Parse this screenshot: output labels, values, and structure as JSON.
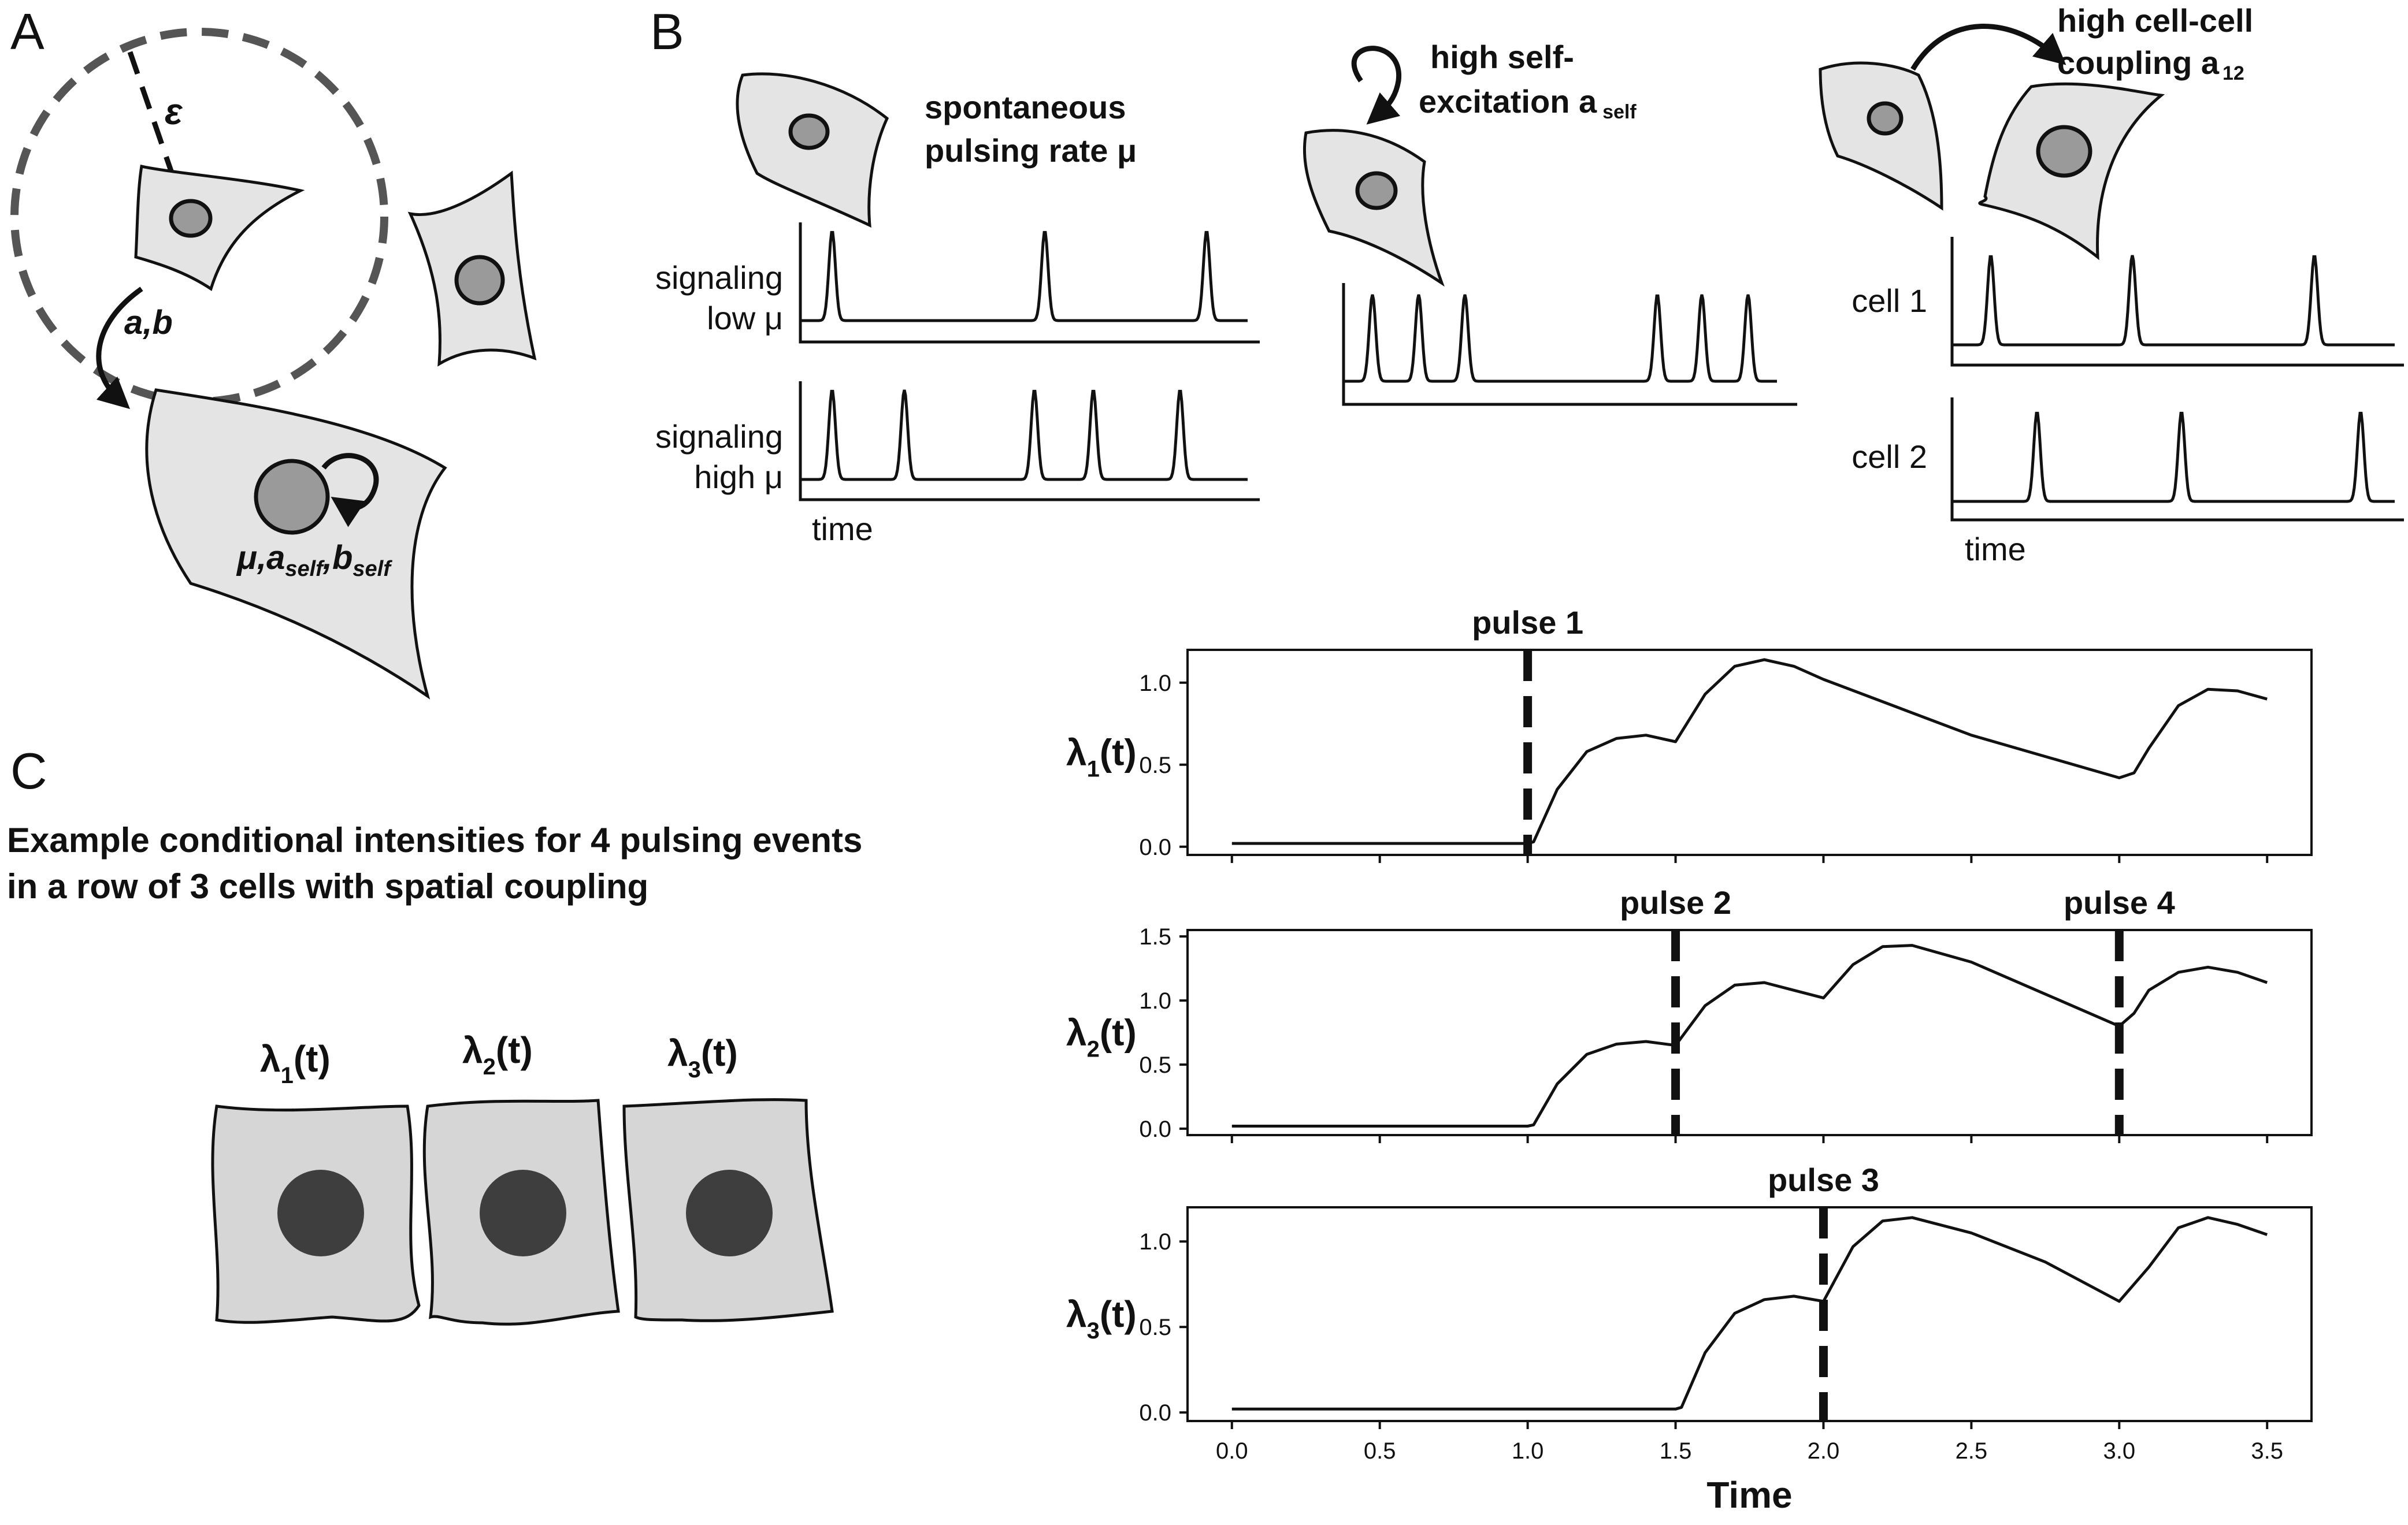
{
  "panels": {
    "a": "A",
    "b": "B",
    "c": "C"
  },
  "panel_a": {
    "epsilon": "ε",
    "ab": "a,b",
    "params_mu": "μ,a",
    "params_aself_sub": "self",
    "params_b": ",b",
    "params_bself_sub": "self"
  },
  "panel_b": {
    "rate_title_1": "spontaneous",
    "rate_title_2": "pulsing rate μ",
    "low_1": "signaling",
    "low_2": "low μ",
    "high_1": "signaling",
    "high_2": "high μ",
    "time_left": "time",
    "self_title_1": "high self-",
    "self_title_2": "excitation a",
    "self_sub": "self",
    "cc_title_1": "high cell-cell",
    "cc_title_2": "coupling a",
    "cc_sub": "12",
    "cell1": "cell 1",
    "cell2": "cell 2",
    "time_right": "time"
  },
  "panel_c": {
    "title_1": "Example conditional intensities for 4 pulsing events",
    "title_2": "in a row of 3 cells with spatial coupling",
    "cells": [
      {
        "main": "λ",
        "sub": "1",
        "tail": "(t)"
      },
      {
        "main": "λ",
        "sub": "2",
        "tail": "(t)"
      },
      {
        "main": "λ",
        "sub": "3",
        "tail": "(t)"
      }
    ]
  },
  "colors": {
    "cell_fill": "#e4e4e4",
    "cell_row_fill": "#d6d6d6",
    "nucleus": "#9a9a9a",
    "nucleus_dark": "#3e3e3e",
    "ink": "#111111"
  },
  "chart_data": [
    {
      "type": "line",
      "ylabel": "λ1(t)",
      "ylabel_main": "λ",
      "ylabel_sub": "1",
      "ylabel_tail": "(t)",
      "xlim": [
        -0.15,
        3.65
      ],
      "ylim": [
        -0.05,
        1.2
      ],
      "yticks": [
        "0.0",
        "0.5",
        "1.0"
      ],
      "pulses": [
        {
          "label": "pulse 1",
          "x": 1.0
        }
      ],
      "x": [
        0,
        0.5,
        1.0,
        1.02,
        1.1,
        1.2,
        1.3,
        1.4,
        1.5,
        1.6,
        1.7,
        1.8,
        1.9,
        2.0,
        2.25,
        2.5,
        2.75,
        3.0,
        3.05,
        3.1,
        3.2,
        3.3,
        3.4,
        3.5
      ],
      "y": [
        0.02,
        0.02,
        0.02,
        0.03,
        0.35,
        0.58,
        0.66,
        0.68,
        0.64,
        0.93,
        1.1,
        1.14,
        1.1,
        1.02,
        0.85,
        0.68,
        0.55,
        0.42,
        0.45,
        0.6,
        0.86,
        0.96,
        0.95,
        0.9
      ]
    },
    {
      "type": "line",
      "ylabel": "λ2(t)",
      "ylabel_main": "λ",
      "ylabel_sub": "2",
      "ylabel_tail": "(t)",
      "xlim": [
        -0.15,
        3.65
      ],
      "ylim": [
        -0.05,
        1.55
      ],
      "yticks": [
        "0.0",
        "0.5",
        "1.0",
        "1.5"
      ],
      "pulses": [
        {
          "label": "pulse 2",
          "x": 1.5
        },
        {
          "label": "pulse 4",
          "x": 3.0
        }
      ],
      "x": [
        0,
        0.5,
        1.0,
        1.02,
        1.1,
        1.2,
        1.3,
        1.4,
        1.5,
        1.6,
        1.7,
        1.8,
        1.9,
        2.0,
        2.1,
        2.2,
        2.3,
        2.5,
        2.75,
        3.0,
        3.05,
        3.1,
        3.2,
        3.3,
        3.4,
        3.5
      ],
      "y": [
        0.02,
        0.02,
        0.02,
        0.03,
        0.35,
        0.58,
        0.66,
        0.68,
        0.65,
        0.96,
        1.12,
        1.14,
        1.08,
        1.02,
        1.28,
        1.42,
        1.43,
        1.3,
        1.05,
        0.8,
        0.9,
        1.08,
        1.22,
        1.26,
        1.22,
        1.14
      ]
    },
    {
      "type": "line",
      "xlabel": "Time",
      "ylabel": "λ3(t)",
      "ylabel_main": "λ",
      "ylabel_sub": "3",
      "ylabel_tail": "(t)",
      "xlim": [
        -0.15,
        3.65
      ],
      "ylim": [
        -0.05,
        1.2
      ],
      "yticks": [
        "0.0",
        "0.5",
        "1.0"
      ],
      "xticks": [
        "0.0",
        "0.5",
        "1.0",
        "1.5",
        "2.0",
        "2.5",
        "3.0",
        "3.5"
      ],
      "pulses": [
        {
          "label": "pulse 3",
          "x": 2.0
        }
      ],
      "x": [
        0,
        0.5,
        1.0,
        1.5,
        1.52,
        1.6,
        1.7,
        1.8,
        1.9,
        2.0,
        2.1,
        2.2,
        2.3,
        2.5,
        2.75,
        3.0,
        3.1,
        3.2,
        3.3,
        3.4,
        3.5
      ],
      "y": [
        0.02,
        0.02,
        0.02,
        0.02,
        0.03,
        0.35,
        0.58,
        0.66,
        0.68,
        0.65,
        0.97,
        1.12,
        1.14,
        1.05,
        0.88,
        0.65,
        0.85,
        1.08,
        1.14,
        1.1,
        1.04
      ]
    }
  ]
}
